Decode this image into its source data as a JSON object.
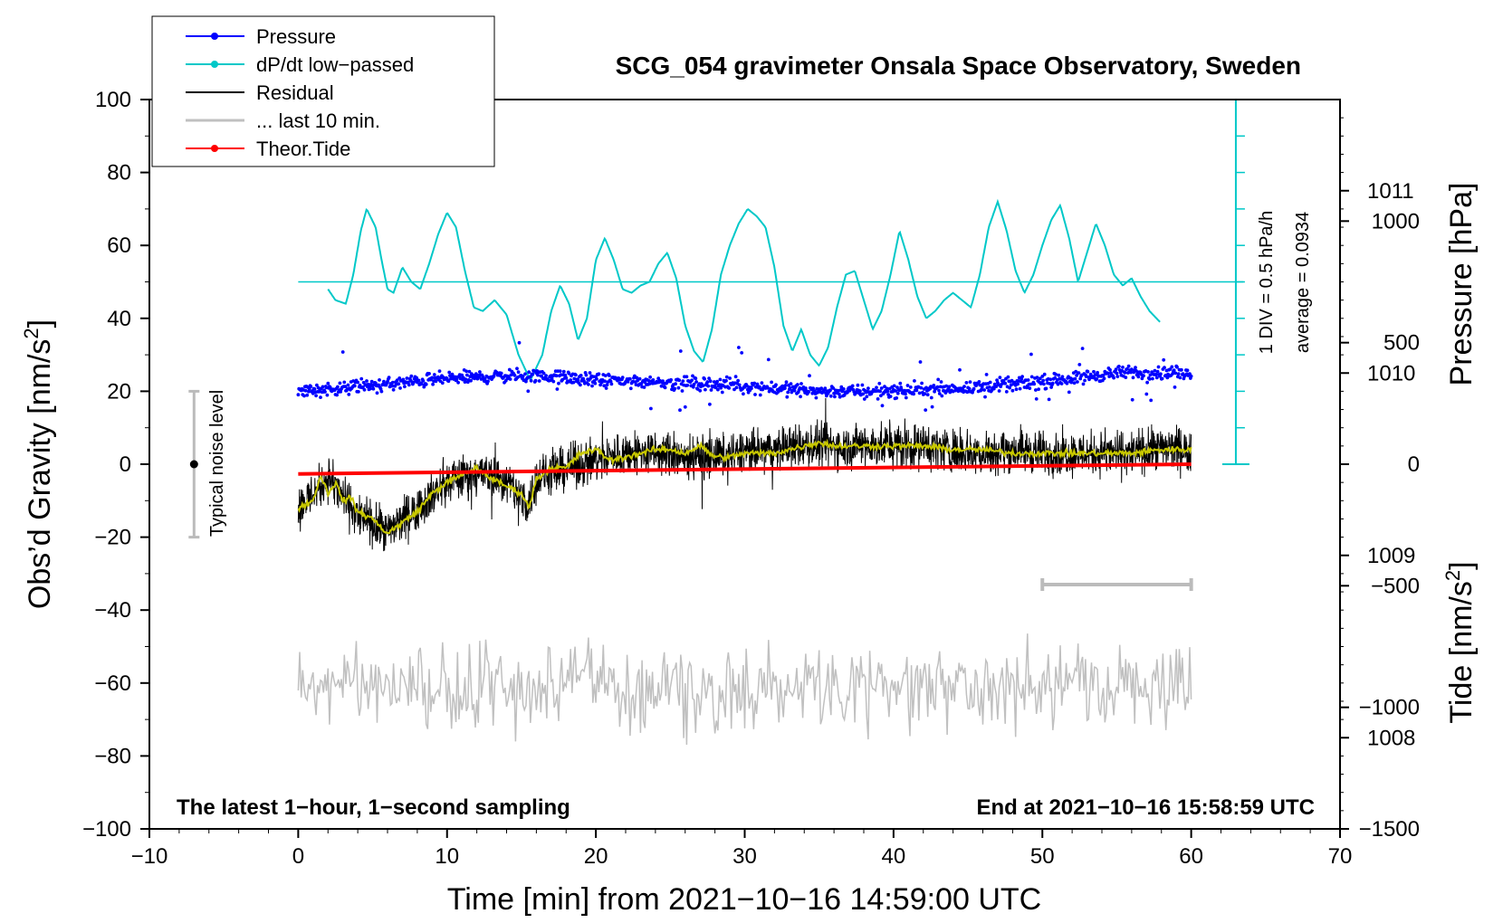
{
  "chart_data": {
    "type": "line",
    "title": "SCG_054 gravimeter Onsala Space Observatory, Sweden",
    "xlabel": "Time [min] from 2021−10−16 14:59:00 UTC",
    "ylabel_left": "Obs’d Gravity [nm/s",
    "ylabel_left_sup": "2",
    "ylabel_left_close": "]",
    "ylabel_right_pressure": "Pressure [hPa]",
    "ylabel_right_tide": "Tide [nm/s",
    "ylabel_right_tide_sup": "2",
    "ylabel_right_tide_close": "]",
    "xlim": [
      -10,
      70
    ],
    "ylim_left": [
      -100,
      100
    ],
    "x_ticks": [
      {
        "value": -10,
        "label": "−10"
      },
      {
        "value": 0,
        "label": "0"
      },
      {
        "value": 10,
        "label": "10"
      },
      {
        "value": 20,
        "label": "20"
      },
      {
        "value": 30,
        "label": "30"
      },
      {
        "value": 40,
        "label": "40"
      },
      {
        "value": 50,
        "label": "50"
      },
      {
        "value": 60,
        "label": "60"
      },
      {
        "value": 70,
        "label": "70"
      }
    ],
    "y_left_ticks": [
      {
        "value": 100,
        "label": "100"
      },
      {
        "value": 80,
        "label": "80"
      },
      {
        "value": 60,
        "label": "60"
      },
      {
        "value": 40,
        "label": "40"
      },
      {
        "value": 20,
        "label": "20"
      },
      {
        "value": 0,
        "label": "0"
      },
      {
        "value": -20,
        "label": "−20"
      },
      {
        "value": -40,
        "label": "−40"
      },
      {
        "value": -60,
        "label": "−60"
      },
      {
        "value": -80,
        "label": "−80"
      },
      {
        "value": -100,
        "label": "−100"
      }
    ],
    "pressure_axis": {
      "range_hPa": [
        1007.5,
        1011.5
      ],
      "ticks": [
        {
          "value": 1011,
          "label": "1011"
        },
        {
          "value": 1010,
          "label": "1010"
        },
        {
          "value": 1009,
          "label": "1009"
        },
        {
          "value": 1008,
          "label": "1008"
        }
      ]
    },
    "tide_axis": {
      "range": [
        -1500,
        1500
      ],
      "ticks": [
        {
          "value": 1000,
          "label": "1000"
        },
        {
          "value": 500,
          "label": "500"
        },
        {
          "value": 0,
          "label": "0"
        },
        {
          "value": -500,
          "label": "−500"
        },
        {
          "value": -1000,
          "label": "−1000"
        },
        {
          "value": -1500,
          "label": "−1500"
        }
      ]
    },
    "series": [
      {
        "name": "Pressure",
        "color": "#0000ff",
        "style": "dots",
        "x": [
          0,
          5,
          10,
          15,
          20,
          25,
          30,
          35,
          40,
          45,
          50,
          55,
          60
        ],
        "values_hPa": [
          1009.9,
          1009.93,
          1009.97,
          1009.99,
          1009.96,
          1009.95,
          1009.93,
          1009.9,
          1009.9,
          1009.92,
          1009.95,
          1010.0,
          1010.0
        ]
      },
      {
        "name": "dP/dt low−passed",
        "color": "#00c8c8",
        "style": "line",
        "baseline": 50,
        "x": [
          2,
          2.5,
          3.2,
          3.7,
          4.2,
          4.6,
          5.2,
          5.6,
          6.0,
          6.4,
          7.0,
          7.6,
          8.2,
          8.8,
          9.4,
          10.0,
          10.6,
          11.2,
          11.8,
          12.4,
          13.2,
          14.0,
          14.8,
          15.6,
          16.4,
          17.0,
          17.6,
          18.2,
          18.8,
          19.4,
          20.0,
          20.6,
          21.2,
          21.8,
          22.4,
          23.0,
          23.6,
          24.2,
          24.8,
          25.4,
          26.0,
          26.6,
          27.2,
          27.8,
          28.4,
          29.0,
          29.6,
          30.2,
          30.8,
          31.4,
          32.0,
          32.6,
          33.2,
          33.8,
          34.4,
          35.0,
          35.6,
          36.2,
          36.8,
          37.4,
          38.0,
          38.6,
          39.2,
          39.8,
          40.4,
          41.0,
          41.6,
          42.2,
          42.8,
          43.4,
          44.0,
          44.6,
          45.2,
          45.8,
          46.4,
          47.0,
          47.6,
          48.2,
          48.8,
          49.4,
          50.0,
          50.6,
          51.2,
          51.8,
          52.4,
          53.0,
          53.6,
          54.2,
          54.8,
          55.4,
          56.0,
          56.6,
          57.2,
          57.9
        ],
        "values": [
          48,
          45,
          44,
          52,
          64,
          70,
          65,
          56,
          48,
          47,
          54,
          50,
          48,
          55,
          63,
          69,
          65,
          53,
          43,
          42,
          45,
          41,
          30,
          23,
          30,
          42,
          49,
          44,
          34,
          40,
          56,
          62,
          56,
          48,
          47,
          49,
          50,
          55,
          58,
          51,
          38,
          31,
          28,
          37,
          52,
          60,
          66,
          70,
          68,
          65,
          54,
          38,
          31,
          37,
          30,
          27,
          32,
          43,
          52,
          53,
          45,
          37,
          42,
          52,
          64,
          56,
          46,
          40,
          42,
          45,
          47,
          45,
          43,
          52,
          65,
          72,
          64,
          53,
          47,
          52,
          60,
          67,
          71,
          62,
          50,
          58,
          66,
          60,
          52,
          49,
          51,
          46,
          42,
          39
        ]
      },
      {
        "name": "Residual",
        "color": "#000000",
        "style": "noisy-line",
        "x": [
          0,
          2,
          4,
          6,
          8,
          10,
          12,
          14,
          15.5,
          16,
          18,
          20,
          22,
          24,
          26,
          28,
          30,
          32,
          34,
          36,
          38,
          40,
          42,
          44,
          46,
          48,
          50,
          52,
          54,
          56,
          58,
          60
        ],
        "values": [
          -12,
          -4,
          -14,
          -19,
          -12,
          -5,
          -2,
          -5,
          -11,
          -4,
          -1,
          1,
          3,
          3,
          2,
          2,
          3,
          4,
          5,
          5,
          5,
          5,
          5,
          4,
          3,
          4,
          3,
          3,
          3,
          3,
          4,
          4
        ]
      },
      {
        "name": "Residual smoothed",
        "color": "#c8c800",
        "style": "line",
        "x": [
          0,
          1,
          1.5,
          2,
          2.5,
          3,
          3.5,
          4,
          5,
          6,
          7,
          8,
          9,
          10,
          11,
          12,
          13,
          14,
          15,
          15.5,
          16,
          17,
          18,
          19,
          20,
          21,
          22,
          23,
          24,
          25,
          26,
          27,
          28,
          29,
          30,
          31,
          32,
          33,
          34,
          35,
          36,
          38,
          40,
          42,
          44,
          46,
          48,
          50,
          52,
          54,
          56,
          58,
          60
        ],
        "values": [
          -12,
          -10,
          -3,
          -8,
          -5,
          -10,
          -9,
          -13,
          -15,
          -19,
          -16,
          -13,
          -8,
          -5,
          -3,
          -1,
          -4,
          -6,
          -8,
          -12,
          -4,
          -1,
          -1,
          3,
          4,
          1,
          2,
          3,
          4,
          4,
          3,
          5,
          2,
          2,
          3,
          3,
          3,
          4,
          5,
          6,
          5,
          5,
          5,
          5,
          4,
          4,
          3,
          3,
          3,
          3,
          3,
          4,
          4
        ]
      },
      {
        "name": "... last 10 min.",
        "color": "#c0c0c0",
        "style": "line",
        "center": -61,
        "amplitude": 8,
        "x_range": [
          0,
          60
        ]
      },
      {
        "name": "Theor.Tide",
        "color": "#ff0000",
        "style": "line",
        "x": [
          0,
          60
        ],
        "values_nm_s2": [
          -40,
          0
        ]
      }
    ],
    "legend": [
      {
        "label": "Pressure",
        "color": "#0000ff",
        "marker": "dot"
      },
      {
        "label": "dP/dt low−passed",
        "color": "#00c8c8",
        "marker": "dot"
      },
      {
        "label": "Residual",
        "color": "#000000",
        "marker": "none"
      },
      {
        "label": "... last 10 min.",
        "color": "#c0c0c0",
        "marker": "none"
      },
      {
        "label": "Theor.Tide",
        "color": "#ff0000",
        "marker": "dot"
      }
    ],
    "legend_position": "top-left",
    "annotations": {
      "noise_label": "Typical noise level",
      "noise_range": [
        -20,
        20
      ],
      "noise_x": -7,
      "div_label": "1 DIV = 0.5 hPa/h",
      "average_label": "average = 0.0934",
      "dpdt_scale_x": 63,
      "dpdt_scale_range": [
        0,
        100
      ],
      "last10_bar_x": [
        50,
        60
      ],
      "last10_bar_y": -33,
      "footer_left": "The latest 1−hour, 1−second sampling",
      "footer_right": "End at 2021−10−16 15:58:59 UTC"
    }
  }
}
